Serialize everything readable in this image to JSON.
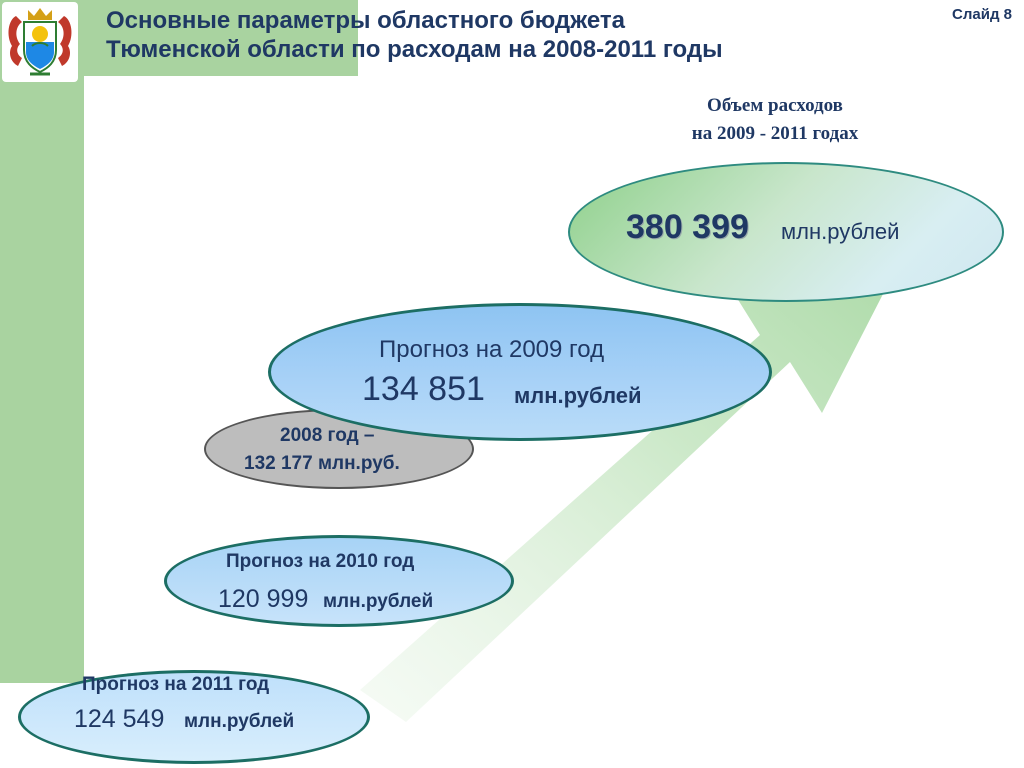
{
  "header": {
    "title_line1": "Основные параметры областного бюджета",
    "title_line2": "Тюменской области по расходам на 2008-2011 годы",
    "slide_label": "Слайд 8"
  },
  "emblem": {
    "icon": "regional-coat-of-arms-icon"
  },
  "arrow": {
    "icon": "growth-arrow-icon"
  },
  "volume": {
    "label_line1": "Объем расходов",
    "label_line2": "на 2009 - 2011 годах",
    "value": "380 399",
    "unit": "млн.рублей"
  },
  "forecasts": {
    "y2009": {
      "label": "Прогноз на 2009 год",
      "value": "134 851",
      "unit": "млн.рублей"
    },
    "y2008": {
      "label": "2008 год –",
      "value_text": "132 177 млн.руб."
    },
    "y2010": {
      "label": "Прогноз на 2010 год",
      "value": "120 999",
      "unit": "млн.рублей"
    },
    "y2011": {
      "label": "Прогноз на 2011 год",
      "value": "124 549",
      "unit": "млн.рублей"
    }
  },
  "colors": {
    "accent_green": "#a9d3a0",
    "text_navy": "#1f3864",
    "ellipse_border": "#1c6e64",
    "ellipse_blue": "#a9d2f7",
    "ellipse_gray": "#bdbdbd"
  }
}
